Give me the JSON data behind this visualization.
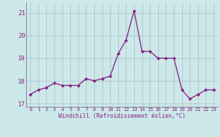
{
  "hours": [
    0,
    1,
    2,
    3,
    4,
    5,
    6,
    7,
    8,
    9,
    10,
    11,
    12,
    13,
    14,
    15,
    16,
    17,
    18,
    19,
    20,
    21,
    22,
    23
  ],
  "temps": [
    17.4,
    17.6,
    17.7,
    17.9,
    17.8,
    17.8,
    17.8,
    18.1,
    18.0,
    18.1,
    18.2,
    19.2,
    19.8,
    21.1,
    19.3,
    19.3,
    19.0,
    19.0,
    19.0,
    17.6,
    17.2,
    17.4,
    17.6,
    17.6
  ],
  "line_color": "#882288",
  "marker": "D",
  "marker_size": 2.2,
  "bg_color": "#cce8e8",
  "grid_color": "#aabbcc",
  "xlabel": "Windchill (Refroidissement éolien,°C)",
  "ylim": [
    16.85,
    21.45
  ],
  "xlim": [
    -0.5,
    23.5
  ],
  "yticks": [
    17,
    18,
    19,
    20,
    21
  ],
  "xticks": [
    0,
    1,
    2,
    3,
    4,
    5,
    6,
    7,
    8,
    9,
    10,
    11,
    12,
    13,
    14,
    15,
    16,
    17,
    18,
    19,
    20,
    21,
    22,
    23
  ],
  "tick_color": "#882288",
  "linewidth": 1.0,
  "xlabel_fontsize": 6.0,
  "ytick_fontsize": 6.5,
  "xtick_fontsize": 5.2
}
